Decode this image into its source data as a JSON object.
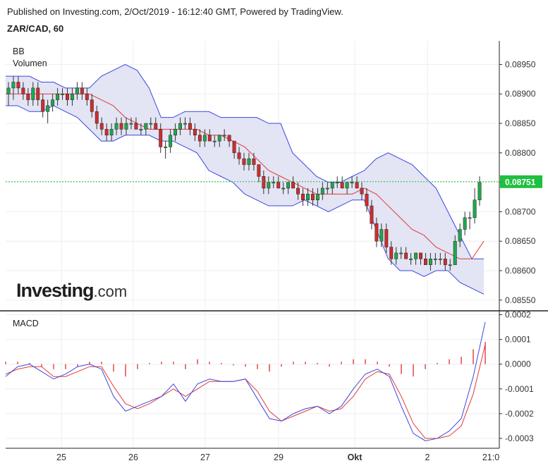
{
  "header": {
    "published": "Published on Investing.com, 2/Oct/2019 - 16:12:40 GMT, Powered by TradingView.",
    "symbol": "ZAR/CAD, 60"
  },
  "indicators": {
    "main_top": "BB",
    "main_second": "Volumen",
    "lower": "MACD"
  },
  "logo": {
    "bold": "Investing",
    "suffix": ".com"
  },
  "colors": {
    "up_candle": "#1fa84b",
    "down_candle": "#d02c2c",
    "bb_band": "#3b48e0",
    "bb_fill": "#e3e4f4",
    "bb_mid": "#e23a3a",
    "macd_line": "#3b48e0",
    "signal_line": "#e23a3a",
    "histogram": "#e23a3a",
    "last_price": "#1fbf3f"
  },
  "chart_data": [
    {
      "type": "candlestick",
      "title": "ZAR/CAD, 60",
      "y_ticks": [
        "0.08950",
        "0.08900",
        "0.08850",
        "0.08800",
        "0.08750",
        "0.08700",
        "0.08650",
        "0.08600",
        "0.08550"
      ],
      "ylim": [
        0.08533,
        0.0899
      ],
      "last_price": 0.08751,
      "last_price_label": "0.08751",
      "x_ticks": [
        "25",
        "26",
        "27",
        "29",
        "Okt",
        "2",
        "21:0"
      ],
      "candles": [
        [
          0.089,
          0.0892,
          0.0888,
          0.0891
        ],
        [
          0.0891,
          0.0893,
          0.0889,
          0.0892
        ],
        [
          0.0892,
          0.0893,
          0.089,
          0.0891
        ],
        [
          0.0891,
          0.0892,
          0.0889,
          0.089
        ],
        [
          0.089,
          0.0891,
          0.0888,
          0.0889
        ],
        [
          0.0889,
          0.0892,
          0.0888,
          0.0891
        ],
        [
          0.0891,
          0.0892,
          0.0888,
          0.0889
        ],
        [
          0.0889,
          0.089,
          0.0886,
          0.0887
        ],
        [
          0.0887,
          0.0889,
          0.0885,
          0.0888
        ],
        [
          0.0888,
          0.089,
          0.0887,
          0.0889
        ],
        [
          0.0889,
          0.0891,
          0.0888,
          0.089
        ],
        [
          0.089,
          0.0891,
          0.0889,
          0.089
        ],
        [
          0.089,
          0.0891,
          0.0888,
          0.0889
        ],
        [
          0.0889,
          0.0891,
          0.0888,
          0.089
        ],
        [
          0.089,
          0.0892,
          0.0889,
          0.0891
        ],
        [
          0.0891,
          0.0892,
          0.0889,
          0.089
        ],
        [
          0.089,
          0.0891,
          0.0888,
          0.0889
        ],
        [
          0.0889,
          0.089,
          0.0886,
          0.0887
        ],
        [
          0.0887,
          0.0888,
          0.0884,
          0.0885
        ],
        [
          0.0885,
          0.0886,
          0.0883,
          0.0884
        ],
        [
          0.0884,
          0.0885,
          0.0882,
          0.0883
        ],
        [
          0.0883,
          0.0885,
          0.0882,
          0.0884
        ],
        [
          0.0884,
          0.0886,
          0.0883,
          0.0885
        ],
        [
          0.0885,
          0.0886,
          0.0883,
          0.0884
        ],
        [
          0.0884,
          0.0886,
          0.0883,
          0.0885
        ],
        [
          0.0885,
          0.0886,
          0.0884,
          0.0885
        ],
        [
          0.0885,
          0.0886,
          0.0884,
          0.0884
        ],
        [
          0.0884,
          0.0885,
          0.0883,
          0.0884
        ],
        [
          0.0884,
          0.0885,
          0.0883,
          0.0885
        ],
        [
          0.0885,
          0.0886,
          0.0884,
          0.0885
        ],
        [
          0.0885,
          0.0886,
          0.0884,
          0.0884
        ],
        [
          0.0884,
          0.0885,
          0.088,
          0.0881
        ],
        [
          0.0881,
          0.0882,
          0.0879,
          0.0881
        ],
        [
          0.0881,
          0.0884,
          0.088,
          0.0883
        ],
        [
          0.0883,
          0.0885,
          0.0882,
          0.0884
        ],
        [
          0.0884,
          0.0886,
          0.0883,
          0.0885
        ],
        [
          0.0885,
          0.0886,
          0.0884,
          0.0885
        ],
        [
          0.0885,
          0.0886,
          0.0883,
          0.0884
        ],
        [
          0.0884,
          0.0885,
          0.0882,
          0.0883
        ],
        [
          0.0883,
          0.0884,
          0.0881,
          0.0882
        ],
        [
          0.0882,
          0.0884,
          0.0881,
          0.0883
        ],
        [
          0.0883,
          0.0884,
          0.0882,
          0.0882
        ],
        [
          0.0882,
          0.0883,
          0.0881,
          0.0882
        ],
        [
          0.0882,
          0.0883,
          0.0881,
          0.0883
        ],
        [
          0.0883,
          0.0884,
          0.0882,
          0.0883
        ],
        [
          0.0883,
          0.0883,
          0.0881,
          0.0882
        ],
        [
          0.0882,
          0.0882,
          0.0879,
          0.088
        ],
        [
          0.088,
          0.0881,
          0.0878,
          0.0879
        ],
        [
          0.0879,
          0.088,
          0.0877,
          0.0878
        ],
        [
          0.0878,
          0.088,
          0.0877,
          0.0879
        ],
        [
          0.0879,
          0.088,
          0.0877,
          0.0878
        ],
        [
          0.0878,
          0.0878,
          0.0875,
          0.0876
        ],
        [
          0.0876,
          0.0877,
          0.0873,
          0.0874
        ],
        [
          0.0874,
          0.0876,
          0.0873,
          0.0875
        ],
        [
          0.0875,
          0.0876,
          0.0874,
          0.0875
        ],
        [
          0.0875,
          0.0876,
          0.0874,
          0.0874
        ],
        [
          0.0874,
          0.0875,
          0.0873,
          0.0874
        ],
        [
          0.0874,
          0.0875,
          0.0873,
          0.0875
        ],
        [
          0.0875,
          0.0876,
          0.0874,
          0.0874
        ],
        [
          0.0874,
          0.0875,
          0.0872,
          0.0873
        ],
        [
          0.0873,
          0.0874,
          0.0871,
          0.0872
        ],
        [
          0.0872,
          0.0874,
          0.0871,
          0.0873
        ],
        [
          0.0873,
          0.0874,
          0.0871,
          0.0872
        ],
        [
          0.0872,
          0.0874,
          0.0871,
          0.0873
        ],
        [
          0.0873,
          0.0875,
          0.0872,
          0.0874
        ],
        [
          0.0874,
          0.0875,
          0.0873,
          0.0874
        ],
        [
          0.0874,
          0.0875,
          0.0873,
          0.0875
        ],
        [
          0.0875,
          0.0876,
          0.0874,
          0.0875
        ],
        [
          0.0875,
          0.0876,
          0.0874,
          0.0874
        ],
        [
          0.0874,
          0.0875,
          0.0873,
          0.0875
        ],
        [
          0.0875,
          0.0876,
          0.0874,
          0.0875
        ],
        [
          0.0875,
          0.0876,
          0.0874,
          0.0874
        ],
        [
          0.0874,
          0.0875,
          0.0872,
          0.0873
        ],
        [
          0.0873,
          0.0874,
          0.087,
          0.0871
        ],
        [
          0.0871,
          0.0872,
          0.0867,
          0.0868
        ],
        [
          0.0868,
          0.0869,
          0.0864,
          0.0865
        ],
        [
          0.0865,
          0.0868,
          0.0864,
          0.0867
        ],
        [
          0.0867,
          0.0868,
          0.0863,
          0.0864
        ],
        [
          0.0864,
          0.0865,
          0.0861,
          0.0862
        ],
        [
          0.0862,
          0.0864,
          0.0861,
          0.0863
        ],
        [
          0.0863,
          0.0864,
          0.0862,
          0.0863
        ],
        [
          0.0863,
          0.0864,
          0.0862,
          0.0862
        ],
        [
          0.0862,
          0.0863,
          0.0861,
          0.0862
        ],
        [
          0.0862,
          0.0863,
          0.0861,
          0.0863
        ],
        [
          0.0863,
          0.0863,
          0.0861,
          0.0862
        ],
        [
          0.0862,
          0.0863,
          0.0861,
          0.0861
        ],
        [
          0.0861,
          0.0863,
          0.086,
          0.0862
        ],
        [
          0.0862,
          0.0863,
          0.0861,
          0.0862
        ],
        [
          0.0862,
          0.0863,
          0.0861,
          0.0862
        ],
        [
          0.0862,
          0.0863,
          0.086,
          0.0861
        ],
        [
          0.0861,
          0.0862,
          0.086,
          0.0861
        ],
        [
          0.0861,
          0.0866,
          0.0861,
          0.0865
        ],
        [
          0.0865,
          0.0868,
          0.0864,
          0.0867
        ],
        [
          0.0867,
          0.087,
          0.0866,
          0.0869
        ],
        [
          0.0869,
          0.087,
          0.0867,
          0.0869
        ],
        [
          0.0869,
          0.0874,
          0.0868,
          0.0872
        ],
        [
          0.0872,
          0.0876,
          0.0871,
          0.0875
        ]
      ],
      "bollinger": {
        "upper": [
          0.0893,
          0.0893,
          0.0893,
          0.0892,
          0.0892,
          0.0891,
          0.0891,
          0.0891,
          0.0893,
          0.0894,
          0.0895,
          0.0894,
          0.0891,
          0.0886,
          0.0886,
          0.0887,
          0.0887,
          0.0887,
          0.0886,
          0.0886,
          0.0886,
          0.0886,
          0.0885,
          0.0885,
          0.088,
          0.0878,
          0.0876,
          0.0875,
          0.0875,
          0.0876,
          0.0877,
          0.0879,
          0.088,
          0.0879,
          0.0878,
          0.0876,
          0.0874,
          0.087,
          0.0866,
          0.0862,
          0.0862
        ],
        "mid": [
          0.089,
          0.089,
          0.089,
          0.089,
          0.089,
          0.089,
          0.089,
          0.089,
          0.0889,
          0.0888,
          0.0886,
          0.0885,
          0.0884,
          0.0884,
          0.0884,
          0.0884,
          0.0884,
          0.0883,
          0.0883,
          0.0882,
          0.0881,
          0.0879,
          0.0877,
          0.0876,
          0.0875,
          0.0874,
          0.0873,
          0.0873,
          0.0873,
          0.0873,
          0.0874,
          0.0873,
          0.0871,
          0.0869,
          0.0867,
          0.0866,
          0.0864,
          0.0863,
          0.0862,
          0.0862,
          0.0865
        ],
        "lower": [
          0.0888,
          0.0888,
          0.0887,
          0.0887,
          0.0888,
          0.0887,
          0.0886,
          0.0884,
          0.0882,
          0.0882,
          0.0883,
          0.0883,
          0.0883,
          0.0882,
          0.0882,
          0.0881,
          0.088,
          0.0877,
          0.0876,
          0.0875,
          0.0873,
          0.0872,
          0.0871,
          0.0871,
          0.0871,
          0.0872,
          0.0871,
          0.087,
          0.0871,
          0.0872,
          0.0872,
          0.0867,
          0.0862,
          0.086,
          0.086,
          0.0859,
          0.086,
          0.086,
          0.0858,
          0.0857,
          0.0856
        ]
      }
    },
    {
      "type": "line",
      "title": "MACD",
      "y_ticks": [
        "0.0002",
        "0.0001",
        "0.0000",
        "-0.0001",
        "-0.0002",
        "-0.0003"
      ],
      "ylim": [
        -0.00034,
        0.00021
      ],
      "series": [
        {
          "values": [
            -5e-05,
            -1e-05,
            0.0,
            -3e-05,
            -6e-05,
            -4e-05,
            -1e-05,
            0.0,
            -2e-05,
            -0.00013,
            -0.00019,
            -0.00017,
            -0.00015,
            -0.00013,
            -8e-05,
            -0.00015,
            -8e-05,
            -6e-05,
            -7e-05,
            -7e-05,
            -6e-05,
            -0.00014,
            -0.00022,
            -0.00023,
            -0.0002,
            -0.00018,
            -0.00017,
            -0.0002,
            -0.00017,
            -0.0001,
            -4e-05,
            -2e-05,
            -5e-05,
            -0.00017,
            -0.00028,
            -0.00031,
            -0.0003,
            -0.00027,
            -0.00022,
            -5e-05,
            0.00017
          ]
        },
        {
          "values": [
            -4e-05,
            -2e-05,
            -1e-05,
            -1e-05,
            -5e-05,
            -5e-05,
            -3e-05,
            -1e-05,
            -1e-05,
            -9e-05,
            -0.00016,
            -0.00018,
            -0.00016,
            -0.00013,
            -0.0001,
            -0.00013,
            -0.0001,
            -7e-05,
            -7e-05,
            -7e-05,
            -6e-05,
            -0.00011,
            -0.00019,
            -0.00023,
            -0.00021,
            -0.00019,
            -0.00017,
            -0.00019,
            -0.00018,
            -0.00013,
            -6e-05,
            -3e-05,
            -4e-05,
            -0.00013,
            -0.00024,
            -0.0003,
            -0.0003,
            -0.00029,
            -0.00025,
            -0.00012,
            8e-05
          ]
        }
      ],
      "histogram": [
        1e-05,
        1e-05,
        5e-06,
        -1e-05,
        -2e-05,
        -2e-05,
        -1e-05,
        1e-05,
        1e-05,
        -3e-05,
        -5e-05,
        -2e-05,
        5e-06,
        1e-05,
        1e-05,
        -2e-05,
        2e-05,
        1e-05,
        5e-06,
        -5e-06,
        -1e-05,
        -2e-05,
        -3e-05,
        -1e-05,
        1e-05,
        1e-05,
        5e-06,
        -1e-05,
        1e-05,
        2e-05,
        2e-05,
        1e-05,
        -1e-05,
        -4e-05,
        -5e-05,
        -2e-05,
        5e-06,
        2e-05,
        3e-05,
        6e-05,
        9e-05
      ]
    }
  ]
}
